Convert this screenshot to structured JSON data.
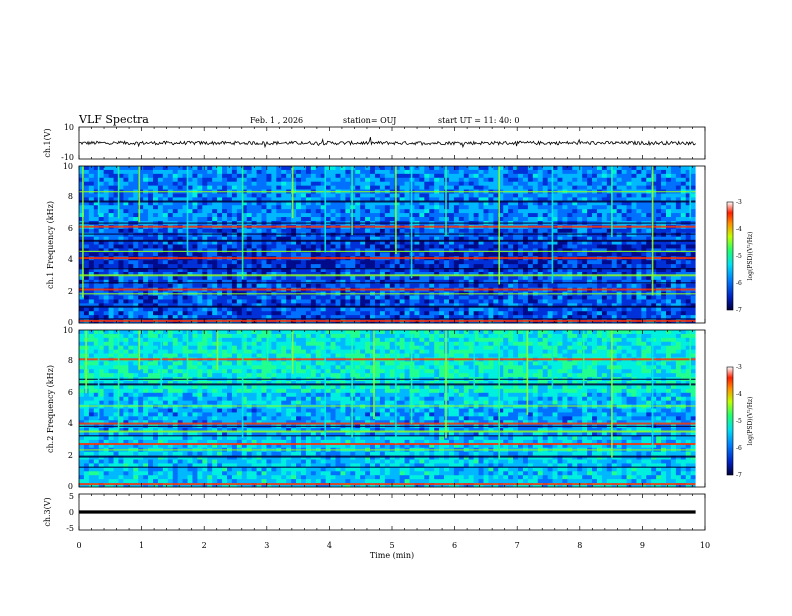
{
  "header": {
    "title": "VLF Spectra",
    "date": "Feb. 1 , 2026",
    "station": "station= OUJ",
    "start_ut": "start UT =   11: 40: 0"
  },
  "colors": {
    "spectrogram": [
      "#00003a",
      "#000b8c",
      "#0030d8",
      "#0070ff",
      "#00b8ff",
      "#00f0e0",
      "#20ff90",
      "#90ff20",
      "#e8f000",
      "#ffa000",
      "#ff3000",
      "#c80000"
    ],
    "waveform": "#000000"
  },
  "chart_data": [
    {
      "type": "line",
      "name": "ch1-waveform",
      "ylabel": "ch.1(V)",
      "ylim": [
        -10,
        10
      ],
      "yticks": [
        "10",
        "-10"
      ],
      "xlim": [
        0,
        10
      ],
      "baseline": 0,
      "amplitude": 1.1
    },
    {
      "type": "heatmap",
      "name": "ch1-spectrogram",
      "ylabel": "ch.1 Frequency (kHz)",
      "ylim": [
        0,
        10
      ],
      "yticks": [
        "0",
        "2",
        "4",
        "6",
        "8",
        "10"
      ],
      "xlim": [
        0,
        9.85
      ],
      "colorbar": {
        "label": "log(PSD)(V²/Hz)",
        "range": [
          -7,
          -3
        ],
        "ticks": [
          "-3",
          "-4",
          "-5",
          "-6",
          "-7"
        ]
      },
      "bands_khz": [
        0.2,
        0.3,
        1.1,
        1.9,
        2.2,
        2.6,
        3.1,
        3.5,
        4.2,
        4.6,
        5.3,
        5.7,
        6.2,
        6.4,
        7.8,
        8.4
      ],
      "vertical_events_min": [
        0.05,
        0.3,
        0.62,
        0.95,
        1.72,
        2.6,
        3.4,
        3.92,
        4.35,
        5.05,
        5.3,
        5.85,
        6.7,
        7.55,
        8.5,
        9.15,
        9.75
      ]
    },
    {
      "type": "heatmap",
      "name": "ch2-spectrogram",
      "ylabel": "ch.2 Frequency (kHz)",
      "ylim": [
        0,
        10
      ],
      "yticks": [
        "0",
        "2",
        "4",
        "6",
        "8",
        "10"
      ],
      "xlim": [
        0,
        9.85
      ],
      "colorbar": {
        "label": "log(PSD)(V²/Hz)",
        "range": [
          -7,
          -3
        ],
        "ticks": [
          "-3",
          "-4",
          "-5",
          "-6",
          "-7"
        ]
      },
      "bands_khz": [
        0.25,
        1.3,
        2.0,
        2.4,
        2.8,
        3.3,
        3.6,
        3.9,
        4.1,
        5.2,
        6.6,
        6.9,
        8.2
      ],
      "vertical_events_min": [
        0.1,
        0.3,
        0.62,
        0.95,
        1.3,
        1.72,
        2.2,
        2.6,
        3.0,
        3.4,
        3.92,
        4.35,
        4.7,
        5.05,
        5.3,
        5.85,
        6.3,
        6.7,
        7.15,
        7.55,
        8.05,
        8.5,
        9.15,
        9.75
      ]
    },
    {
      "type": "line",
      "name": "ch3-waveform",
      "ylabel": "ch.3(V)",
      "ylim": [
        -5,
        5
      ],
      "yticks": [
        "5",
        "0",
        "-5"
      ],
      "xlim": [
        0,
        10
      ],
      "baseline": 0,
      "thickness_v": 0.9
    }
  ],
  "xaxis": {
    "label": "Time (min)",
    "range": [
      0,
      10
    ],
    "ticks": [
      "0",
      "1",
      "2",
      "3",
      "4",
      "5",
      "6",
      "7",
      "8",
      "9",
      "10"
    ]
  }
}
